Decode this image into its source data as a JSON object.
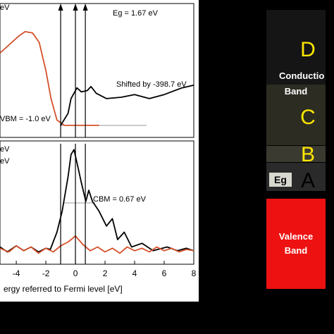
{
  "chart_data": [
    {
      "type": "line",
      "annotations": [
        "eV",
        "Eg = 1.67 eV",
        "Shifted by -398.7 eV",
        "VBM = -1.0 eV"
      ],
      "xlim": [
        -5.1,
        8
      ],
      "ylim": [
        0,
        1
      ],
      "arrows": [
        -1,
        0,
        0.67
      ],
      "series": [
        {
          "color": "#d4502a",
          "x": [
            -5.1,
            -4.4,
            -3.8,
            -3.4,
            -2.9,
            -2.45,
            -2.0,
            -1.65,
            -1.25,
            -0.75,
            0,
            0.8,
            1.6
          ],
          "values": [
            0.63,
            0.7,
            0.76,
            0.79,
            0.78,
            0.71,
            0.5,
            0.29,
            0.13,
            0.09,
            0.09,
            0.09,
            0.09
          ]
        },
        {
          "color": "#000000",
          "x": [
            -1.0,
            -0.5,
            -0.3,
            0.1,
            0.4,
            0.8,
            1.05,
            1.4,
            2.1,
            3.1,
            4.0,
            5.0,
            6.0,
            7.2,
            8.0
          ],
          "values": [
            0.09,
            0.18,
            0.29,
            0.37,
            0.34,
            0.35,
            0.38,
            0.33,
            0.29,
            0.3,
            0.32,
            0.29,
            0.32,
            0.37,
            0.39
          ]
        }
      ]
    },
    {
      "type": "line",
      "annotations": [
        "eV",
        "eV",
        "CBM = 0.67 eV"
      ],
      "x_label": "ergy referred to Fermi level [eV]",
      "xlim": [
        -5.1,
        8
      ],
      "ylim": [
        0,
        1
      ],
      "xticks": [
        -4,
        -2,
        0,
        2,
        4,
        6,
        8
      ],
      "arrows": [
        -1,
        0,
        0.67
      ],
      "series": [
        {
          "color": "#000000",
          "x": [
            -5.1,
            -4.6,
            -4.0,
            -3.5,
            -3.0,
            -2.5,
            -2.0,
            -1.7,
            -1.25,
            -0.9,
            -0.5,
            -0.3,
            -0.1,
            0.2,
            0.4,
            0.7,
            0.9,
            1.15,
            1.6,
            2.1,
            2.5,
            2.85,
            3.3,
            3.8,
            4.5,
            5.25,
            6.2,
            6.9,
            7.5,
            8.0
          ],
          "values": [
            0.14,
            0.1,
            0.15,
            0.11,
            0.14,
            0.1,
            0.13,
            0.12,
            0.26,
            0.43,
            0.71,
            0.89,
            0.93,
            0.77,
            0.66,
            0.51,
            0.6,
            0.51,
            0.43,
            0.31,
            0.37,
            0.2,
            0.26,
            0.14,
            0.17,
            0.11,
            0.14,
            0.11,
            0.13,
            0.11
          ]
        },
        {
          "color": "#d4502a",
          "x": [
            -5.1,
            -4.5,
            -4.0,
            -3.5,
            -3.0,
            -2.5,
            -2.0,
            -1.5,
            -1.0,
            -0.5,
            0,
            0.5,
            1.0,
            1.5,
            2.0,
            2.5,
            3.0,
            3.5,
            4.0,
            4.5,
            5.0,
            5.5,
            6.0,
            6.5,
            7.0,
            7.5,
            8.0
          ],
          "values": [
            0.13,
            0.1,
            0.15,
            0.11,
            0.14,
            0.09,
            0.13,
            0.1,
            0.15,
            0.18,
            0.23,
            0.16,
            0.11,
            0.14,
            0.1,
            0.13,
            0.09,
            0.14,
            0.11,
            0.13,
            0.1,
            0.14,
            0.11,
            0.13,
            0.1,
            0.12,
            0.11
          ]
        }
      ]
    }
  ],
  "diagram": {
    "d": "D",
    "conduction": [
      "Conductio",
      "Band"
    ],
    "c": "C",
    "b": "B",
    "eg": "Eg",
    "a": "A",
    "valence": [
      "Valence",
      "Band"
    ]
  }
}
